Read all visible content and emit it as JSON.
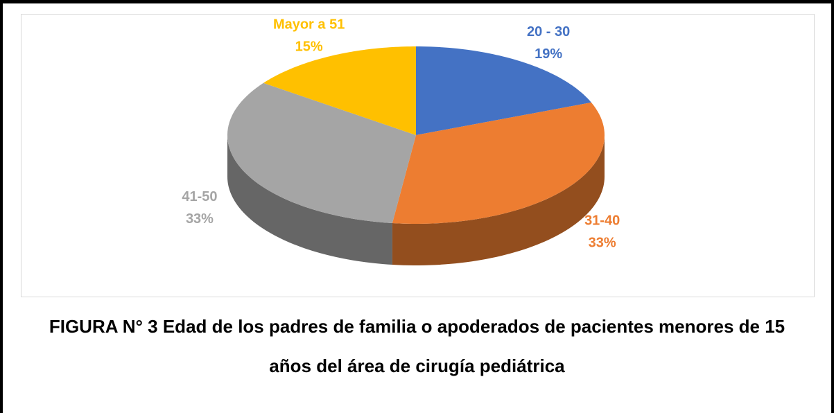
{
  "chart_data": {
    "type": "pie",
    "title": "FIGURA N° 3 Edad de los padres de familia o apoderados de pacientes menores de 15 años del área de cirugía pediátrica",
    "categories": [
      "20 - 30",
      "31-40",
      "41-50",
      "Mayor a 51"
    ],
    "values": [
      19,
      33,
      33,
      15
    ],
    "value_labels": [
      "19%",
      "33%",
      "33%",
      "15%"
    ],
    "colors": [
      "#4472c4",
      "#ed7d31",
      "#a5a5a5",
      "#ffc000"
    ]
  }
}
